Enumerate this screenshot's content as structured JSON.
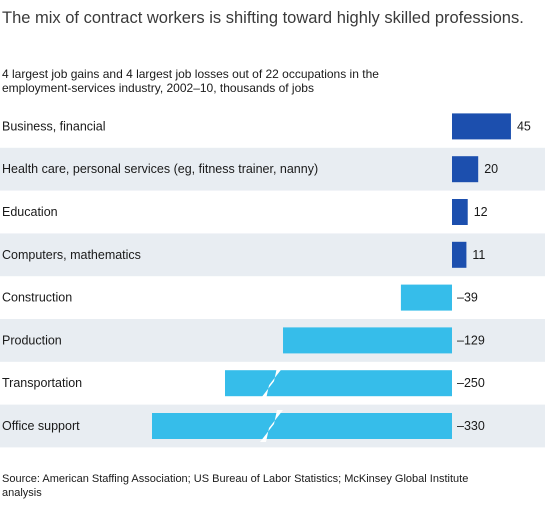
{
  "title": "The mix of contract workers is shifting toward highly skilled professions.",
  "subtitle": "4 largest job gains and 4 largest job losses out of 22 occupations in the employment-services industry, 2002–10, thousands of jobs",
  "source": "Source: American Staffing Association; US Bureau of Labor Statistics; McKinsey Global Institute analysis",
  "colors": {
    "gain": "#1c4fae",
    "loss": "#36bdea",
    "row_alt": "#e8edf2",
    "break": "#ffffff"
  },
  "chart_data": {
    "type": "bar",
    "orientation": "horizontal",
    "categories": [
      "Business, financial",
      "Health care, personal services (eg, fitness trainer, nanny)",
      "Education",
      "Computers, mathematics",
      "Construction",
      "Production",
      "Transportation",
      "Office support"
    ],
    "values": [
      45,
      20,
      12,
      11,
      -39,
      -129,
      -250,
      -330
    ],
    "value_labels": [
      "45",
      "20",
      "12",
      "11",
      "–39",
      "–129",
      "–250",
      "–330"
    ],
    "axis_breaks": [
      "Transportation",
      "Office support"
    ],
    "grid": false,
    "legend": "none"
  }
}
